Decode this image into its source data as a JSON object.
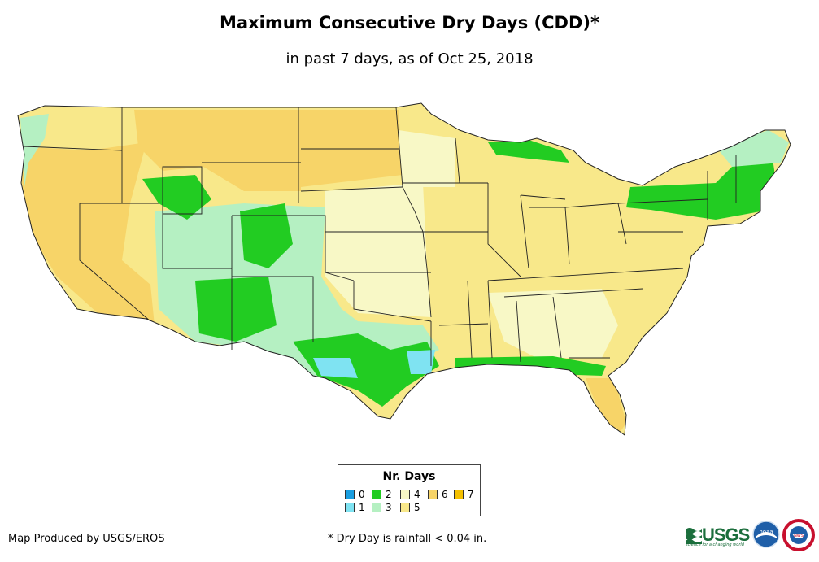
{
  "title": "Maximum Consecutive Dry Days (CDD)*",
  "subtitle": "in past 7 days, as of Oct 25, 2018",
  "legend": {
    "title": "Nr. Days",
    "items": [
      {
        "label": "0",
        "color": "#1a9ee0"
      },
      {
        "label": "1",
        "color": "#7fe3f2"
      },
      {
        "label": "2",
        "color": "#22cc22"
      },
      {
        "label": "3",
        "color": "#b5f0c2"
      },
      {
        "label": "4",
        "color": "#f8f8c6"
      },
      {
        "label": "5",
        "color": "#f8e88a"
      },
      {
        "label": "6",
        "color": "#f7d468"
      },
      {
        "label": "7",
        "color": "#f4c000"
      }
    ]
  },
  "credit": "Map Produced by USGS/EROS",
  "footnote": "* Dry Day is rainfall < 0.04 in.",
  "logos": {
    "usgs": "USGS",
    "usgs_tagline": "science for a changing world",
    "noaa": "noaa",
    "nws": "NWS"
  },
  "icons": [
    "usgs-logo",
    "noaa-logo",
    "nws-logo"
  ]
}
